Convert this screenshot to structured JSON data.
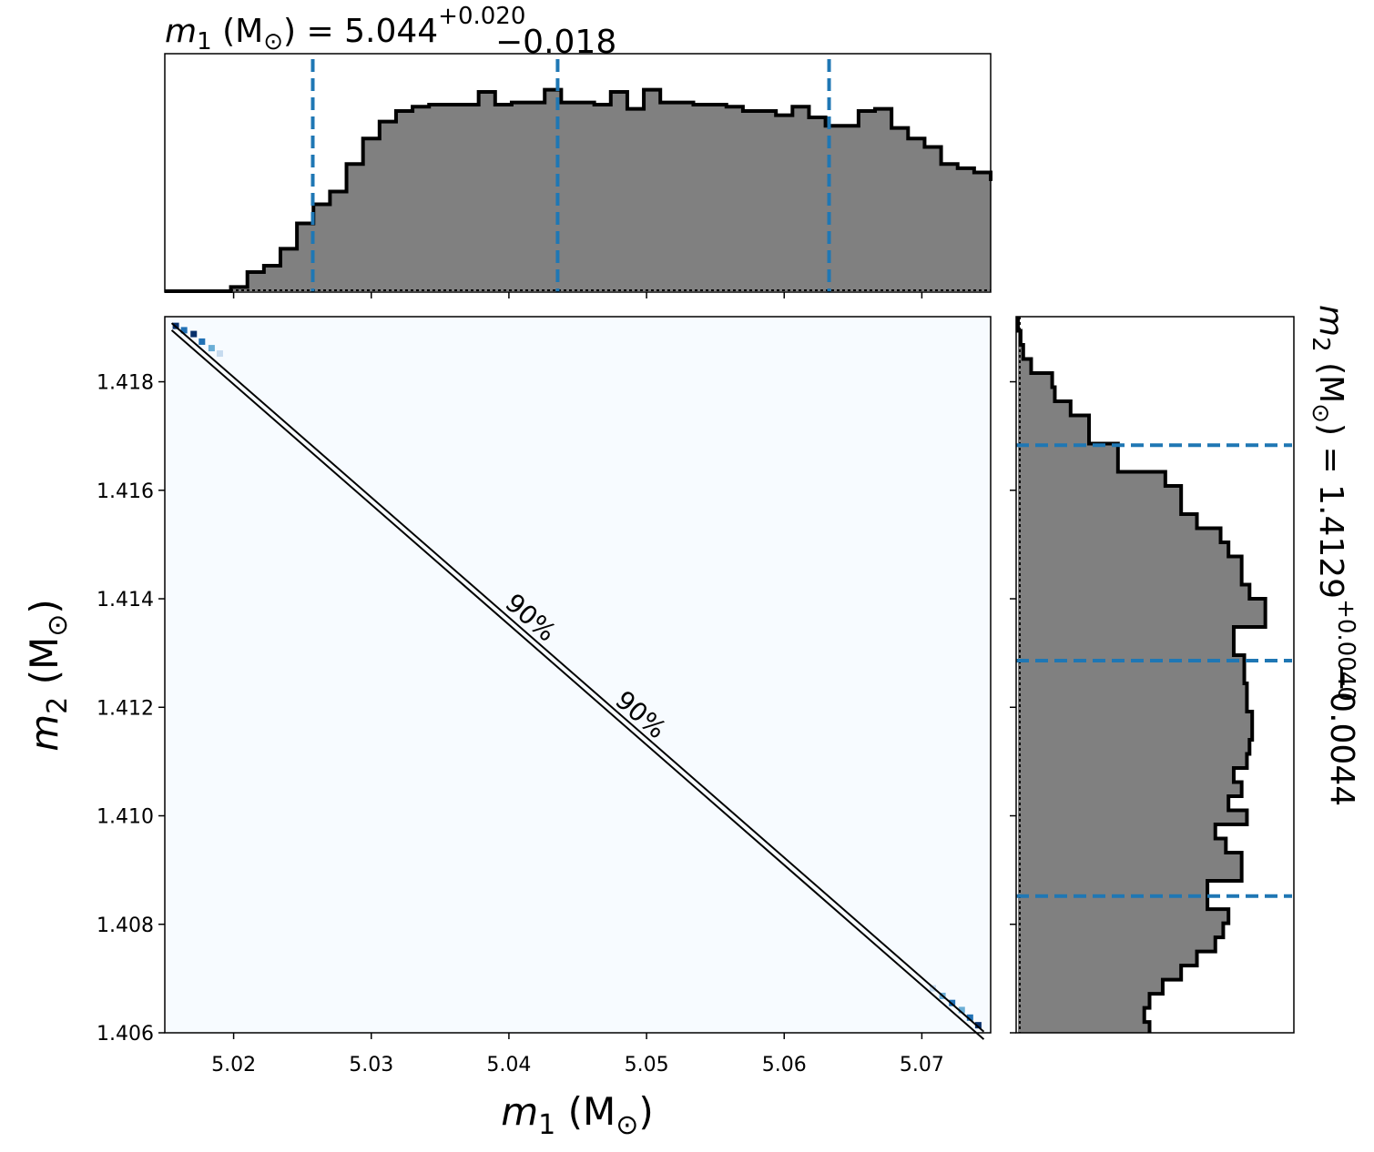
{
  "chart_data": [
    {
      "type": "histogram",
      "panel": "top-marginal",
      "title": {
        "var": "m",
        "sub": "1",
        "unit": "M",
        "odot": "⊙",
        "value": "5.044",
        "plus": "+0.020",
        "minus": "−0.018"
      },
      "xlim": [
        5.015,
        5.075
      ],
      "x_ticks": [
        5.02,
        5.03,
        5.04,
        5.05,
        5.06,
        5.07
      ],
      "bin_edges_start": 5.015,
      "bin_width": 0.0012,
      "counts": [
        0.0,
        0.0,
        0.0,
        0.0,
        0.02,
        0.09,
        0.12,
        0.2,
        0.32,
        0.41,
        0.47,
        0.6,
        0.72,
        0.8,
        0.85,
        0.87,
        0.88,
        0.88,
        0.88,
        0.94,
        0.88,
        0.89,
        0.89,
        0.95,
        0.89,
        0.89,
        0.88,
        0.94,
        0.86,
        0.95,
        0.89,
        0.89,
        0.88,
        0.88,
        0.87,
        0.85,
        0.85,
        0.83,
        0.87,
        0.82,
        0.78,
        0.78,
        0.85,
        0.86,
        0.77,
        0.72,
        0.68,
        0.6,
        0.58,
        0.56,
        0.52,
        0.45,
        0.35,
        0.3,
        0.24,
        0.2,
        0.14,
        0.13,
        0.09,
        0.06,
        0.02,
        0.01,
        0.0,
        0.0,
        0.0
      ],
      "quantiles": [
        5.02575,
        5.04354,
        5.06326
      ],
      "grid": false
    },
    {
      "type": "heatmap",
      "panel": "joint",
      "xlabel": {
        "var": "m",
        "sub": "1",
        "unit": "M",
        "odot": "⊙"
      },
      "ylabel": {
        "var": "m",
        "sub": "2",
        "unit": "M",
        "odot": "⊙"
      },
      "xlim": [
        5.015,
        5.075
      ],
      "ylim": [
        1.406,
        1.4192
      ],
      "x_ticks": [
        5.02,
        5.03,
        5.04,
        5.05,
        5.06,
        5.07
      ],
      "y_ticks": [
        1.406,
        1.408,
        1.41,
        1.412,
        1.414,
        1.416,
        1.418
      ],
      "colormap": [
        "#f7fbff",
        "#c6dbef",
        "#6baed6",
        "#2171b5",
        "#08306b"
      ],
      "contour_lines": [
        {
          "points": [
            [
              5.0155,
              1.41908
            ],
            [
              5.0745,
              1.40602
            ]
          ]
        },
        {
          "points": [
            [
              5.0155,
              1.41895
            ],
            [
              5.0745,
              1.40588
            ]
          ]
        }
      ],
      "contour_labels": [
        {
          "text": "90%",
          "x": 5.0416,
          "y": 1.41366
        },
        {
          "text": "90%",
          "x": 5.0496,
          "y": 1.41187
        }
      ],
      "high_density_cells": [
        {
          "x": 5.0158,
          "y": 1.41903,
          "level": 4
        },
        {
          "x": 5.0164,
          "y": 1.41895,
          "level": 3
        },
        {
          "x": 5.0171,
          "y": 1.41888,
          "level": 4
        },
        {
          "x": 5.0177,
          "y": 1.41874,
          "level": 3
        },
        {
          "x": 5.0184,
          "y": 1.41862,
          "level": 2
        },
        {
          "x": 5.019,
          "y": 1.41852,
          "level": 1
        },
        {
          "x": 5.0708,
          "y": 1.40682,
          "level": 1
        },
        {
          "x": 5.0715,
          "y": 1.40668,
          "level": 2
        },
        {
          "x": 5.0722,
          "y": 1.40655,
          "level": 3
        },
        {
          "x": 5.0729,
          "y": 1.40642,
          "level": 2
        },
        {
          "x": 5.0735,
          "y": 1.40628,
          "level": 3
        },
        {
          "x": 5.0741,
          "y": 1.40614,
          "level": 4
        }
      ]
    },
    {
      "type": "histogram",
      "panel": "right-marginal",
      "orientation": "horizontal",
      "title": {
        "var": "m",
        "sub": "2",
        "unit": "M",
        "odot": "⊙",
        "value": "1.4129",
        "plus": "+0.0040",
        "minus": "−0.0044"
      },
      "ylim": [
        1.406,
        1.4192
      ],
      "bin_edges_start": 1.4192,
      "bin_width": 0.00026,
      "counts": [
        0.0,
        0.01,
        0.02,
        0.05,
        0.13,
        0.14,
        0.2,
        0.27,
        0.27,
        0.38,
        0.38,
        0.56,
        0.62,
        0.62,
        0.68,
        0.77,
        0.8,
        0.85,
        0.85,
        0.88,
        0.94,
        0.94,
        0.82,
        0.82,
        0.86,
        0.86,
        0.87,
        0.87,
        0.89,
        0.89,
        0.88,
        0.87,
        0.82,
        0.85,
        0.8,
        0.87,
        0.75,
        0.79,
        0.85,
        0.85,
        0.72,
        0.72,
        0.8,
        0.78,
        0.75,
        0.68,
        0.62,
        0.55,
        0.5,
        0.48,
        0.5,
        0.36,
        0.32,
        0.28,
        0.2,
        0.15,
        0.1,
        0.07,
        0.02,
        0.01,
        0.0
      ],
      "quantiles": [
        1.40852,
        1.41286,
        1.41683
      ],
      "grid": false
    }
  ]
}
